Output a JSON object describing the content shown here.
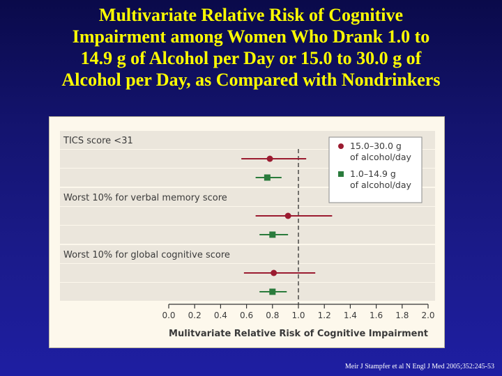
{
  "slide": {
    "title_lines": [
      "Multivariate Relative Risk of Cognitive",
      "Impairment among Women Who Drank 1.0 to",
      "14.9 g of Alcohol per Day or 15.0 to 30.0 g of",
      "Alcohol per Day, as Compared with Nondrinkers"
    ],
    "citation": "Meir J Stampfer et al N Engl J Med 2005;352:245-53"
  },
  "colors": {
    "series_high": "#9b1b30",
    "series_low": "#2a7b3c",
    "band": "#ebe6dc",
    "panel": "#fdf8ec"
  },
  "chart_data": {
    "type": "forest",
    "xlabel": "Mulitvariate Relative Risk of Cognitive Impairment",
    "xlim": [
      0.0,
      2.0
    ],
    "xticks": [
      "0.0",
      "0.2",
      "0.4",
      "0.6",
      "0.8",
      "1.0",
      "1.2",
      "1.4",
      "1.6",
      "1.8",
      "2.0"
    ],
    "reference_line": 1.0,
    "legend_position": "top-right",
    "series": [
      {
        "key": "high",
        "name": "15.0–30.0 g of alcohol/day",
        "legend_lines": [
          "15.0–30.0 g",
          "of alcohol/day"
        ],
        "marker": "circle",
        "color": "#9b1b30"
      },
      {
        "key": "low",
        "name": "1.0–14.9 g of alcohol/day",
        "legend_lines": [
          "1.0–14.9 g",
          "of alcohol/day"
        ],
        "marker": "square",
        "color": "#2a7b3c"
      }
    ],
    "groups": [
      {
        "label": "TICS score <31",
        "estimates": [
          {
            "series": "high",
            "rr": 0.78,
            "ci": [
              0.56,
              1.06
            ]
          },
          {
            "series": "low",
            "rr": 0.76,
            "ci": [
              0.67,
              0.87
            ]
          }
        ]
      },
      {
        "label": "Worst 10% for verbal memory score",
        "estimates": [
          {
            "series": "high",
            "rr": 0.92,
            "ci": [
              0.67,
              1.26
            ]
          },
          {
            "series": "low",
            "rr": 0.8,
            "ci": [
              0.7,
              0.92
            ]
          }
        ]
      },
      {
        "label": "Worst 10% for global cognitive score",
        "estimates": [
          {
            "series": "high",
            "rr": 0.81,
            "ci": [
              0.58,
              1.13
            ]
          },
          {
            "series": "low",
            "rr": 0.8,
            "ci": [
              0.7,
              0.91
            ]
          }
        ]
      }
    ]
  }
}
